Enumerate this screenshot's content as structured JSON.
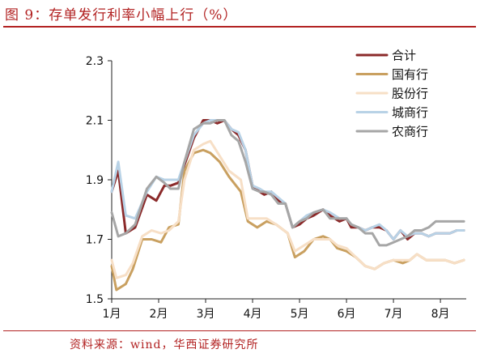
{
  "page": {
    "title": "图 9：存单发行利率小幅上行（%）",
    "source": "资料来源：wind，华西证券研究所"
  },
  "chart_data": {
    "type": "line",
    "ylim": [
      1.5,
      2.3
    ],
    "yticks": [
      "1.5",
      "1.7",
      "1.9",
      "2.1",
      "2.3"
    ],
    "xlim": [
      0,
      7.55
    ],
    "month_labels": [
      "1月",
      "2月",
      "3月",
      "4月",
      "5月",
      "6月",
      "7月",
      "8月"
    ],
    "grid": false,
    "legend_position": "top-right",
    "series": [
      {
        "name": "合计",
        "color": "#8b2a2a",
        "x": [
          0.0,
          0.14,
          0.3,
          0.5,
          0.75,
          0.95,
          1.12,
          1.25,
          1.42,
          1.55,
          1.75,
          1.95,
          2.1,
          2.25,
          2.4,
          2.55,
          2.7,
          2.85,
          3.0,
          3.15,
          3.25,
          3.4,
          3.55,
          3.7,
          3.85,
          4.0,
          4.15,
          4.3,
          4.5,
          4.65,
          4.85,
          5.0,
          5.1,
          5.25,
          5.4,
          5.55,
          5.7,
          5.85,
          6.0,
          6.15,
          6.3,
          6.45,
          6.6,
          6.75,
          6.9,
          7.05,
          7.2,
          7.35,
          7.5
        ],
        "values": [
          1.86,
          1.93,
          1.72,
          1.74,
          1.85,
          1.83,
          1.88,
          1.88,
          1.89,
          1.95,
          2.04,
          2.1,
          2.1,
          2.09,
          2.1,
          2.07,
          2.05,
          2.0,
          1.88,
          1.86,
          1.85,
          1.86,
          1.83,
          1.82,
          1.74,
          1.75,
          1.77,
          1.78,
          1.8,
          1.78,
          1.76,
          1.77,
          1.74,
          1.74,
          1.73,
          1.74,
          1.74,
          1.73,
          1.7,
          1.73,
          1.7,
          1.72,
          1.72,
          1.71,
          1.72,
          1.72,
          1.72,
          1.73,
          1.73
        ]
      },
      {
        "name": "国有行",
        "color": "#c9a060",
        "x": [
          0.0,
          0.1,
          0.3,
          0.45,
          0.65,
          0.85,
          1.05,
          1.22,
          1.42,
          1.55,
          1.75,
          1.95,
          2.1,
          2.3,
          2.5,
          2.75,
          2.9,
          3.1,
          3.3,
          3.5,
          3.75,
          3.9,
          4.1,
          4.3,
          4.5,
          4.65,
          4.8,
          5.0,
          5.2,
          5.4,
          5.6,
          5.8,
          6.0,
          6.2,
          6.35,
          6.5,
          6.7,
          6.9,
          7.1,
          7.3,
          7.5
        ],
        "values": [
          1.61,
          1.53,
          1.55,
          1.6,
          1.7,
          1.7,
          1.69,
          1.74,
          1.75,
          1.93,
          1.99,
          2.0,
          1.99,
          1.96,
          1.91,
          1.86,
          1.76,
          1.74,
          1.76,
          1.75,
          1.72,
          1.64,
          1.66,
          1.7,
          1.71,
          1.7,
          1.67,
          1.66,
          1.64,
          1.61,
          1.6,
          1.62,
          1.63,
          1.62,
          1.63,
          1.65,
          1.63,
          1.63,
          1.63,
          1.62,
          1.63
        ]
      },
      {
        "name": "股份行",
        "color": "#f7dfc6",
        "x": [
          0.0,
          0.1,
          0.3,
          0.45,
          0.65,
          0.85,
          1.05,
          1.22,
          1.42,
          1.55,
          1.75,
          1.95,
          2.1,
          2.3,
          2.5,
          2.75,
          2.9,
          3.1,
          3.3,
          3.5,
          3.75,
          3.9,
          4.1,
          4.3,
          4.5,
          4.65,
          4.8,
          5.0,
          5.2,
          5.4,
          5.6,
          5.8,
          6.0,
          6.2,
          6.35,
          6.5,
          6.7,
          6.9,
          7.1,
          7.3,
          7.5
        ],
        "values": [
          1.63,
          1.57,
          1.58,
          1.62,
          1.71,
          1.73,
          1.72,
          1.73,
          1.76,
          1.9,
          2.0,
          2.02,
          2.03,
          1.98,
          1.93,
          1.9,
          1.77,
          1.77,
          1.77,
          1.75,
          1.72,
          1.66,
          1.68,
          1.7,
          1.7,
          1.7,
          1.68,
          1.67,
          1.64,
          1.61,
          1.6,
          1.62,
          1.63,
          1.63,
          1.63,
          1.65,
          1.63,
          1.63,
          1.63,
          1.62,
          1.63
        ]
      },
      {
        "name": "城商行",
        "color": "#b8d2e6",
        "x": [
          0.0,
          0.14,
          0.3,
          0.5,
          0.75,
          0.95,
          1.12,
          1.25,
          1.42,
          1.55,
          1.75,
          1.95,
          2.1,
          2.25,
          2.4,
          2.55,
          2.7,
          2.85,
          3.0,
          3.15,
          3.25,
          3.4,
          3.55,
          3.7,
          3.85,
          4.0,
          4.15,
          4.3,
          4.5,
          4.65,
          4.85,
          5.0,
          5.1,
          5.25,
          5.4,
          5.55,
          5.7,
          5.85,
          6.0,
          6.15,
          6.3,
          6.45,
          6.6,
          6.75,
          6.9,
          7.05,
          7.2,
          7.35,
          7.5
        ],
        "values": [
          1.86,
          1.96,
          1.78,
          1.77,
          1.86,
          1.91,
          1.9,
          1.9,
          1.9,
          1.96,
          2.05,
          2.09,
          2.1,
          2.1,
          2.1,
          2.07,
          2.06,
          2.0,
          1.88,
          1.87,
          1.86,
          1.86,
          1.84,
          1.82,
          1.74,
          1.76,
          1.78,
          1.79,
          1.8,
          1.79,
          1.77,
          1.77,
          1.75,
          1.74,
          1.73,
          1.74,
          1.75,
          1.73,
          1.7,
          1.73,
          1.71,
          1.72,
          1.72,
          1.71,
          1.72,
          1.72,
          1.72,
          1.73,
          1.73
        ]
      },
      {
        "name": "农商行",
        "color": "#a6a6a6",
        "x": [
          0.0,
          0.14,
          0.3,
          0.5,
          0.75,
          0.95,
          1.12,
          1.25,
          1.42,
          1.55,
          1.75,
          1.95,
          2.1,
          2.25,
          2.4,
          2.55,
          2.7,
          2.85,
          3.0,
          3.15,
          3.25,
          3.4,
          3.55,
          3.7,
          3.85,
          4.0,
          4.15,
          4.3,
          4.5,
          4.65,
          4.85,
          5.0,
          5.1,
          5.25,
          5.4,
          5.55,
          5.7,
          5.85,
          6.0,
          6.15,
          6.3,
          6.45,
          6.6,
          6.75,
          6.9,
          7.05,
          7.2,
          7.35,
          7.5
        ],
        "values": [
          1.79,
          1.71,
          1.72,
          1.75,
          1.87,
          1.91,
          1.89,
          1.87,
          1.87,
          1.96,
          2.07,
          2.09,
          2.09,
          2.1,
          2.1,
          2.05,
          2.03,
          1.96,
          1.87,
          1.86,
          1.86,
          1.85,
          1.82,
          1.82,
          1.74,
          1.76,
          1.77,
          1.79,
          1.8,
          1.77,
          1.77,
          1.77,
          1.75,
          1.74,
          1.72,
          1.72,
          1.68,
          1.68,
          1.69,
          1.7,
          1.71,
          1.73,
          1.73,
          1.74,
          1.76,
          1.76,
          1.76,
          1.76,
          1.76
        ]
      }
    ]
  }
}
